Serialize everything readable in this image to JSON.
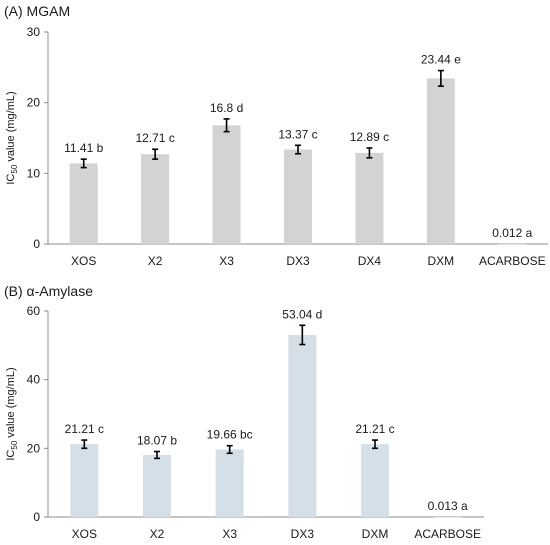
{
  "chart_data": [
    {
      "type": "bar",
      "title": "(A) MGAM",
      "ylabel": "IC50 value (mg/mL)",
      "ylabel_main": "IC",
      "ylabel_sub": "50",
      "ylabel_rest": " value (mg/mL)",
      "ylim": [
        0,
        30
      ],
      "yticks": [
        0,
        10,
        20,
        30
      ],
      "grid": false,
      "bar_color": "#d3d3d3",
      "categories": [
        "XOS",
        "X2",
        "X3",
        "DX3",
        "DX4",
        "DXM",
        "ACARBOSE"
      ],
      "values": [
        11.41,
        12.71,
        16.8,
        13.37,
        12.89,
        23.44,
        0.012
      ],
      "errors": [
        0.6,
        0.7,
        0.9,
        0.6,
        0.7,
        1.1,
        0
      ],
      "labels": [
        "11.41 b",
        "12.71 c",
        "16.8 d",
        "13.37 c",
        "12.89 c",
        "23.44 e",
        "0.012 a"
      ]
    },
    {
      "type": "bar",
      "title": "(B) α-Amylase",
      "ylabel": "IC50 value (mg/mL)",
      "ylabel_main": "IC",
      "ylabel_sub": "50",
      "ylabel_rest": " value (mg/mL)",
      "ylim": [
        0,
        60
      ],
      "yticks": [
        0,
        20,
        40,
        60
      ],
      "grid": false,
      "bar_color": "#d5dfe8",
      "categories": [
        "XOS",
        "X2",
        "X3",
        "DX3",
        "DXM",
        "ACARBOSE"
      ],
      "values": [
        21.21,
        18.07,
        19.66,
        53.04,
        21.21,
        0.013
      ],
      "errors": [
        1.2,
        1.0,
        1.1,
        2.8,
        1.2,
        0
      ],
      "labels": [
        "21.21 c",
        "18.07 b",
        "19.66 bc",
        "53.04 d",
        "21.21 c",
        "0.013 a"
      ]
    }
  ]
}
